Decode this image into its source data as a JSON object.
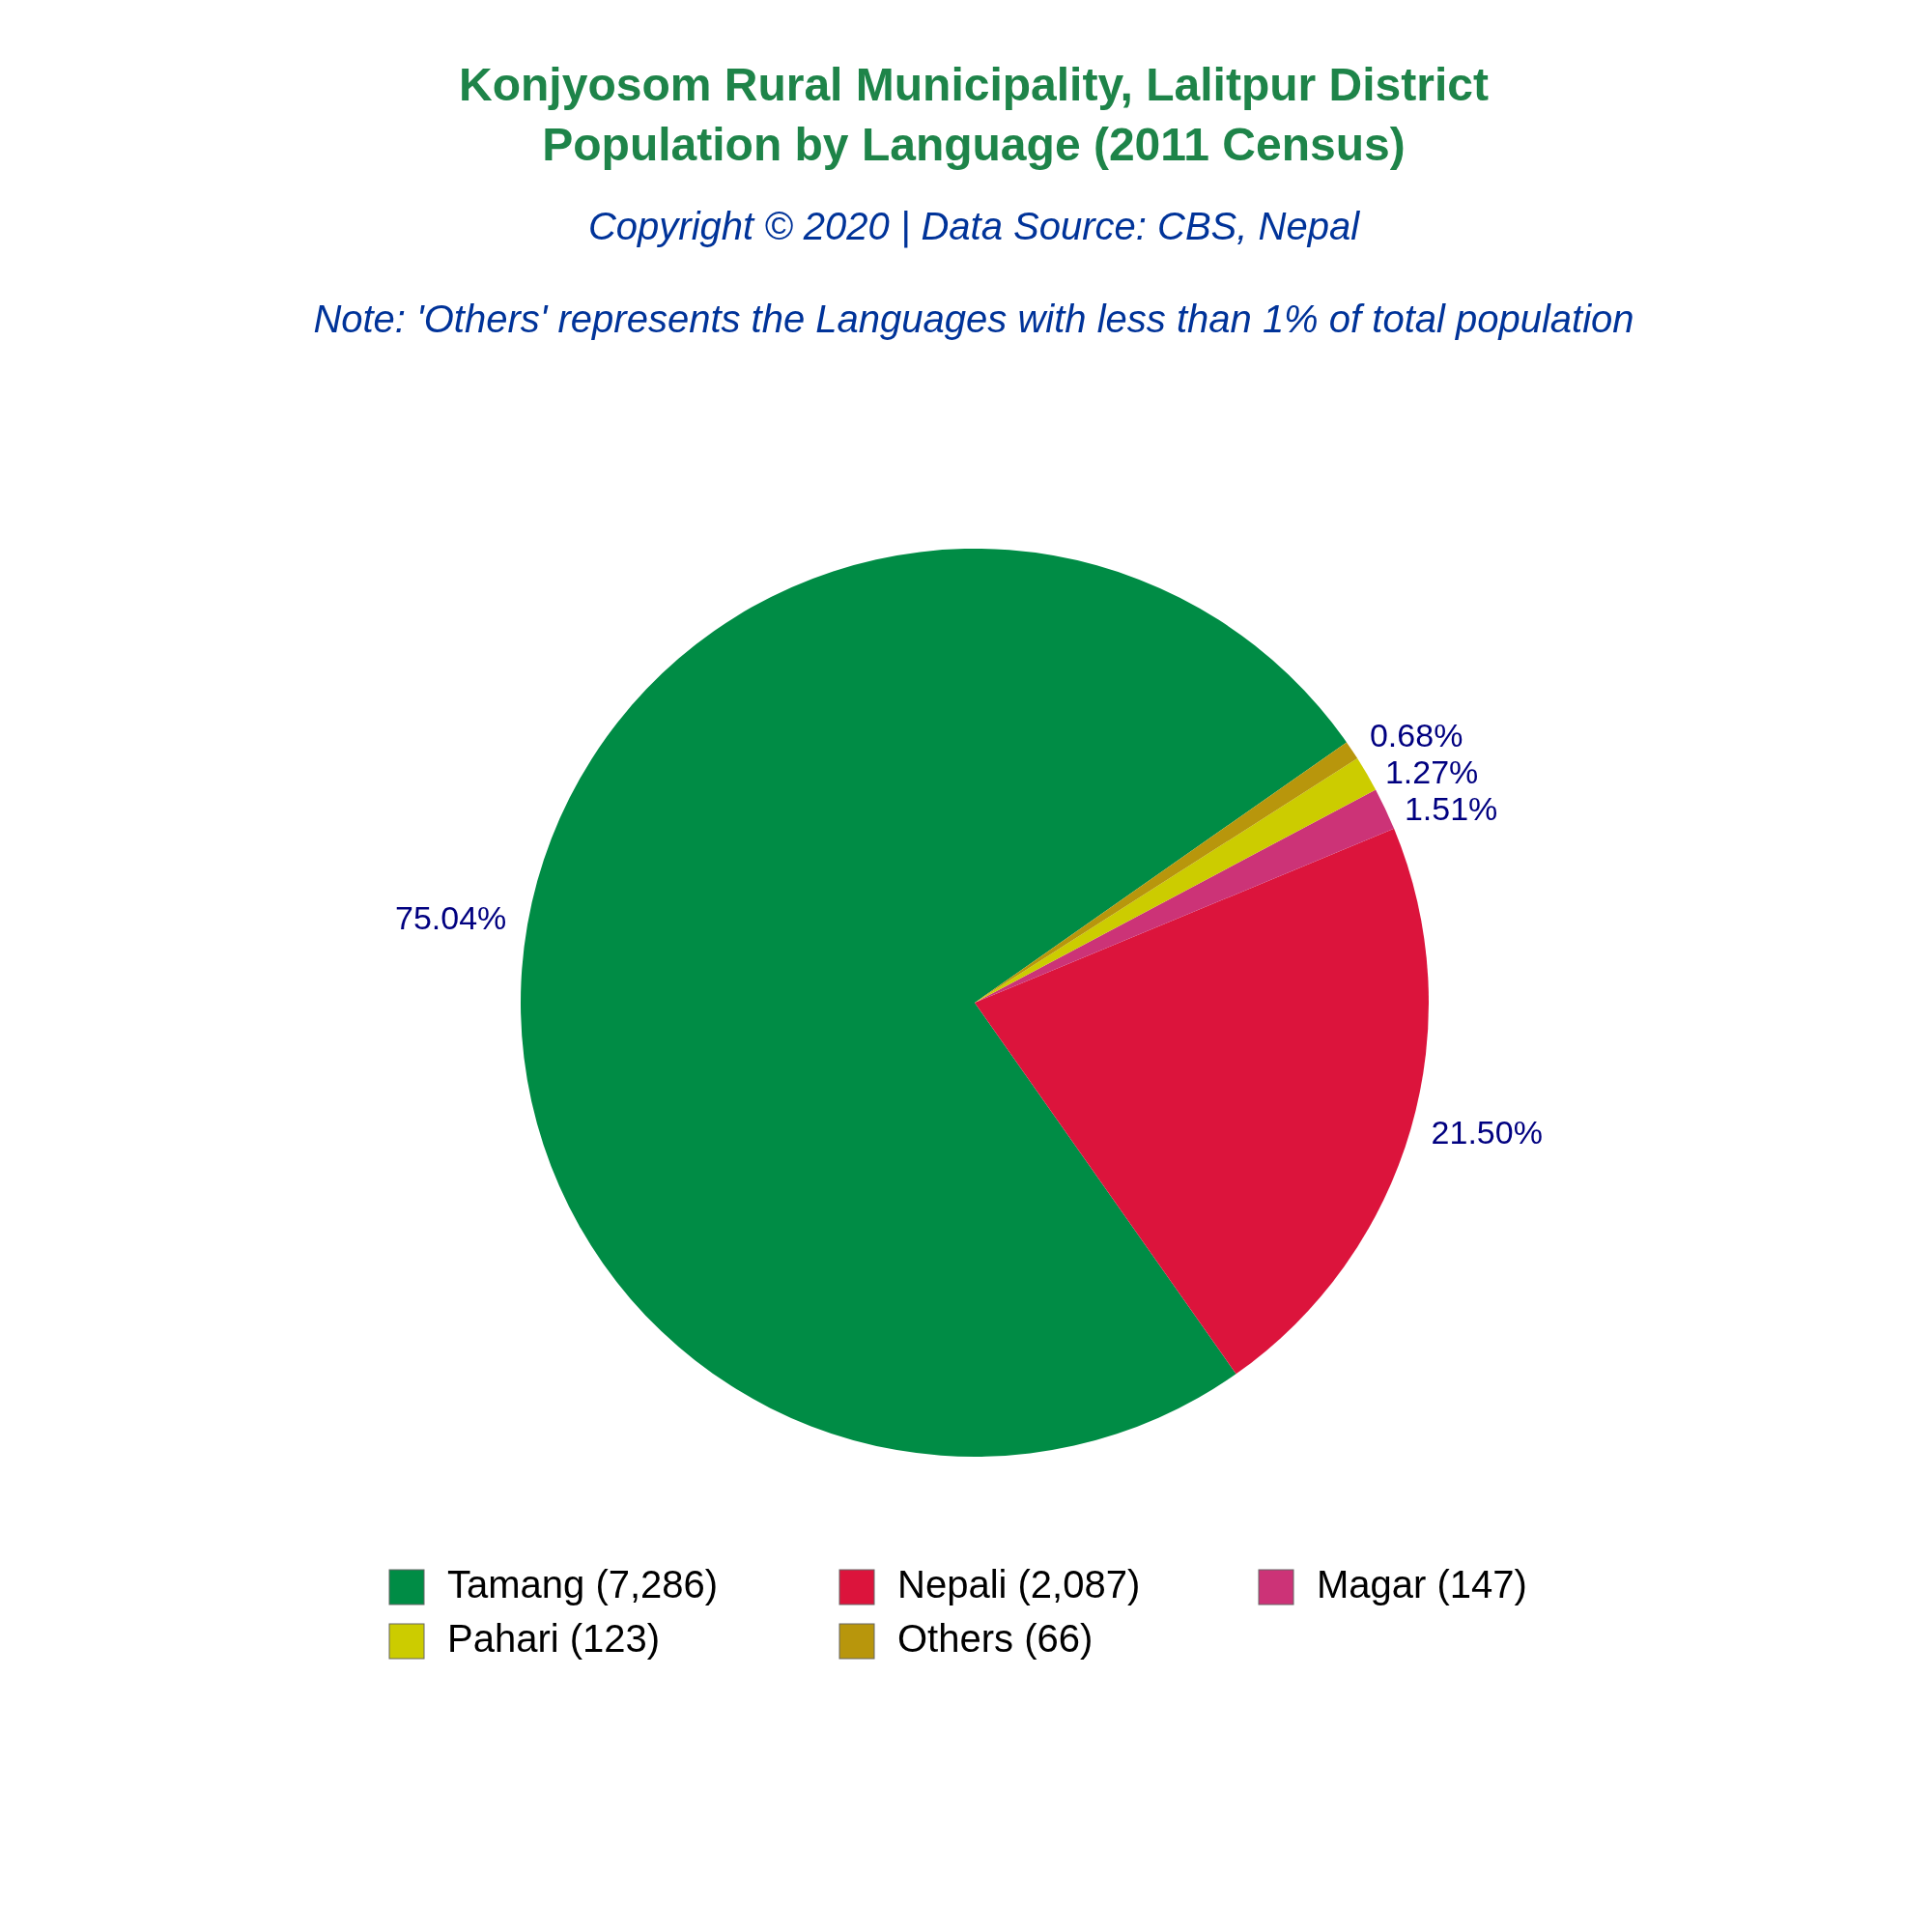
{
  "chart_data": {
    "type": "pie",
    "title": "Konjyosom Rural Municipality, Lalitpur District\nPopulation by Language (2011 Census)",
    "subtitle": "Copyright © 2020 | Data Source: CBS, Nepal",
    "annotations": [
      "Note: 'Others' represents the Languages with less than 1% of total population"
    ],
    "categories": [
      "Tamang (7,286)",
      "Nepali (2,087)",
      "Magar (147)",
      "Pahari (123)",
      "Others (66)"
    ],
    "values": [
      75.04,
      21.5,
      1.51,
      1.27,
      0.68
    ],
    "colors": [
      "#008c45",
      "#dc143c",
      "#cc3377",
      "#cccc00",
      "#b8960c"
    ],
    "value_labels": [
      "75.04%",
      "21.50%",
      "1.51%",
      "1.27%",
      "0.68%"
    ],
    "legend": "bottom"
  }
}
